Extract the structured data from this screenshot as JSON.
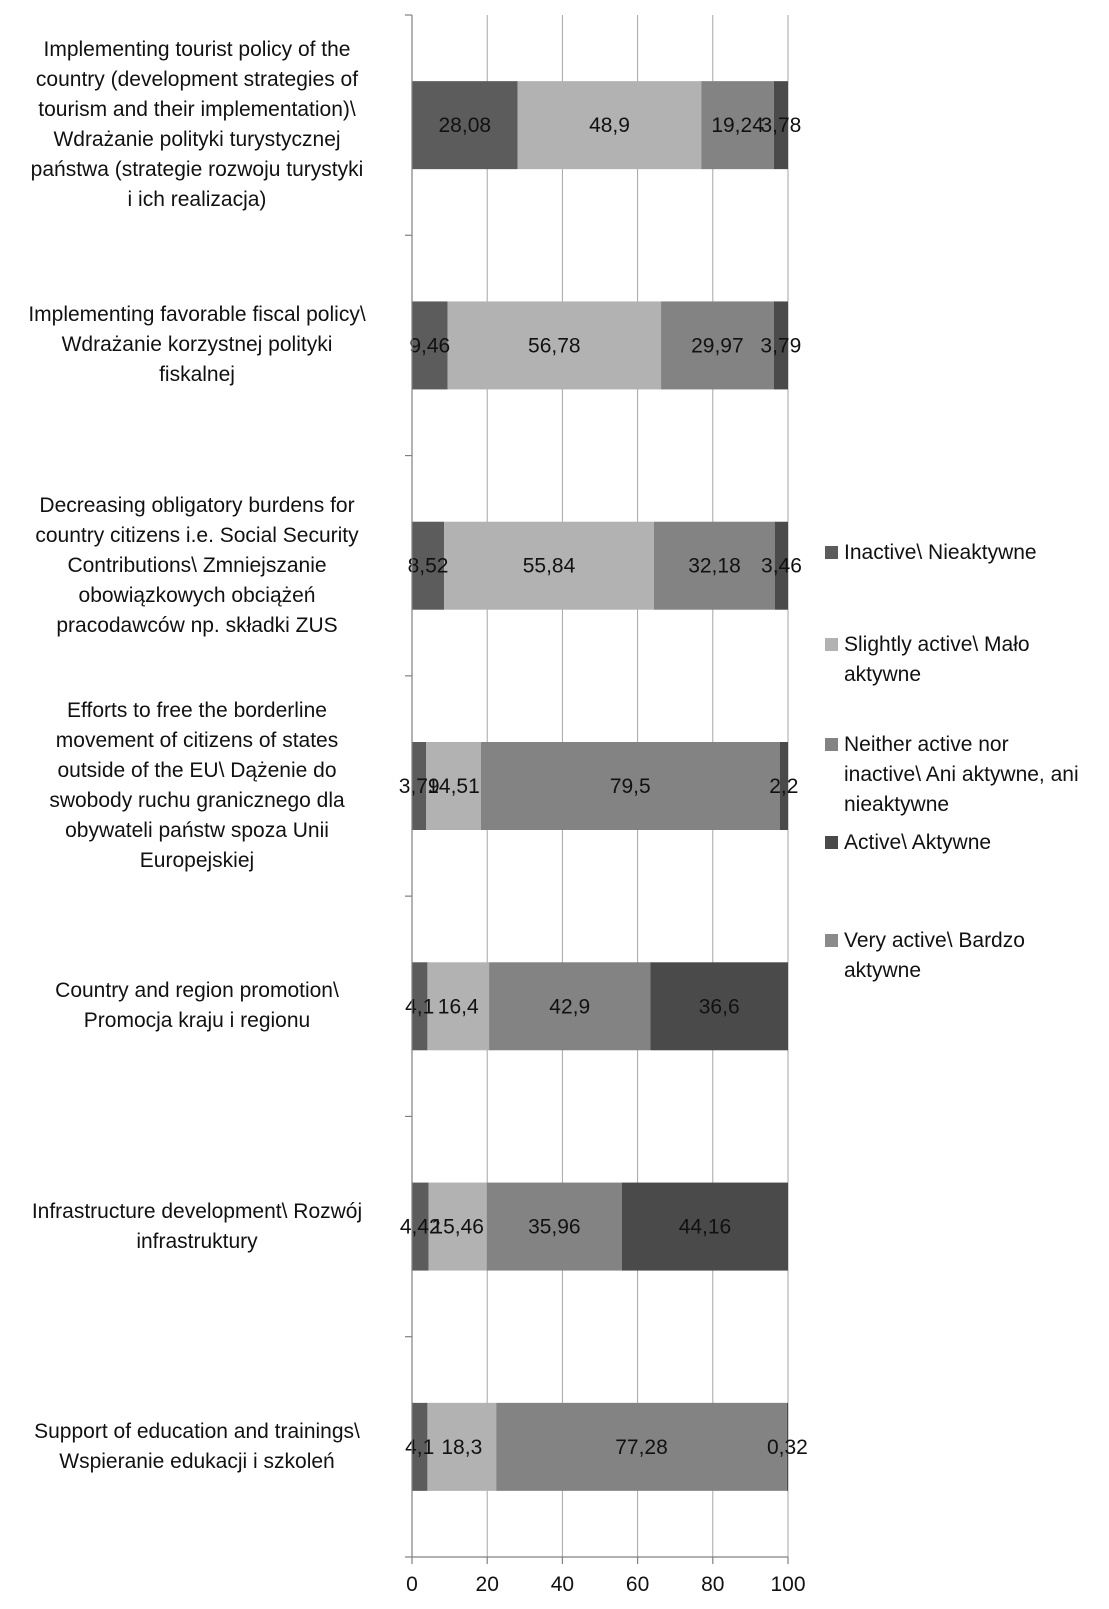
{
  "chart_data": {
    "type": "bar",
    "orientation": "horizontal",
    "stacked": true,
    "title": "",
    "xlabel": "",
    "ylabel": "",
    "xlim": [
      0,
      100
    ],
    "xticks": [
      "0",
      "20",
      "40",
      "60",
      "80",
      "100"
    ],
    "grid": "vertical",
    "legend_position": "right",
    "categories": [
      "Implementing tourist policy of the country (development strategies of tourism and their implementation)\\ Wdrażanie polityki turystycznej państwa (strategie rozwoju turystyki i ich realizacja)",
      "Implementing favorable fiscal policy\\ Wdrażanie korzystnej polityki fiskalnej",
      "Decreasing obligatory burdens for country citizens i.e. Social Security Contributions\\ Zmniejszanie obowiązkowych obciążeń pracodawców np. składki ZUS",
      "Efforts to free the borderline movement of citizens of states outside of the EU\\ Dążenie do swobody ruchu granicznego dla obywateli państw spoza Unii Europejskiej",
      "Country and region promotion\\ Promocja kraju i regionu",
      "Infrastructure development\\ Rozwój infrastruktury",
      "Support of education and trainings\\ Wspieranie edukacji i szkoleń"
    ],
    "category_lines": [
      [
        "Implementing tourist policy of the",
        "country (development strategies of",
        "tourism and their implementation)\\",
        "Wdrażanie polityki turystycznej",
        "państwa (strategie rozwoju turystyki",
        "i ich realizacja)"
      ],
      [
        "Implementing favorable fiscal policy\\",
        "Wdrażanie korzystnej polityki",
        "fiskalnej"
      ],
      [
        "Decreasing obligatory burdens for",
        "country citizens i.e. Social Security",
        "Contributions\\ Zmniejszanie",
        "obowiązkowych obciążeń",
        "pracodawców np. składki ZUS"
      ],
      [
        "Efforts to free the borderline",
        "movement of citizens of states",
        "outside of the EU\\ Dążenie do",
        "swobody ruchu granicznego dla",
        "obywateli państw spoza Unii",
        "Europejskiej"
      ],
      [
        "Country and region promotion\\",
        "Promocja kraju i regionu"
      ],
      [
        "Infrastructure development\\ Rozwój",
        "infrastruktury"
      ],
      [
        "Support of education and trainings\\",
        "Wspieranie edukacji i szkoleń"
      ]
    ],
    "series": [
      {
        "name": "Inactive\\ Nieaktywne",
        "color": "#5c5c5c",
        "values": [
          28.08,
          9.46,
          8.52,
          3.79,
          4.1,
          4.42,
          4.1
        ],
        "labels": [
          "28,08",
          "9,46",
          "8,52",
          "3,79",
          "4,1",
          "4,42",
          "4,1"
        ]
      },
      {
        "name": "Slightly active\\ Mało aktywne",
        "color": "#b2b2b2",
        "values": [
          48.9,
          56.78,
          55.84,
          14.51,
          16.4,
          15.46,
          18.3
        ],
        "labels": [
          "48,9",
          "56,78",
          "55,84",
          "14,51",
          "16,4",
          "15,46",
          "18,3"
        ]
      },
      {
        "name": "Neither active nor inactive\\ Ani aktywne, ani nieaktywne",
        "color": "#838383",
        "values": [
          19.24,
          29.97,
          32.18,
          79.5,
          42.9,
          35.96,
          77.28
        ],
        "labels": [
          "19,24",
          "29,97",
          "32,18",
          "79,5",
          "42,9",
          "35,96",
          "77,28"
        ]
      },
      {
        "name": "Active\\ Aktywne",
        "color": "#4a4a4a",
        "values": [
          3.78,
          3.79,
          3.46,
          2.2,
          36.6,
          44.16,
          0.32
        ],
        "labels": [
          "3,78",
          "3,79",
          "3,46",
          "2,2",
          "36,6",
          "44,16",
          "0,32"
        ]
      },
      {
        "name": "Very active\\ Bardzo aktywne",
        "color": "#8a8a8a",
        "values": [
          0,
          0,
          0,
          0,
          0,
          0,
          0
        ],
        "labels": [
          "",
          "",
          "",
          "",
          "",
          "",
          ""
        ]
      }
    ],
    "legend_lines": [
      [
        "Inactive\\ Nieaktywne"
      ],
      [
        "Slightly active\\ Mało",
        "aktywne"
      ],
      [
        "Neither active nor",
        "inactive\\ Ani aktywne, ani",
        "nieaktywne"
      ],
      [
        "Active\\ Aktywne"
      ],
      [
        "Very active\\ Bardzo",
        "aktywne"
      ]
    ]
  }
}
